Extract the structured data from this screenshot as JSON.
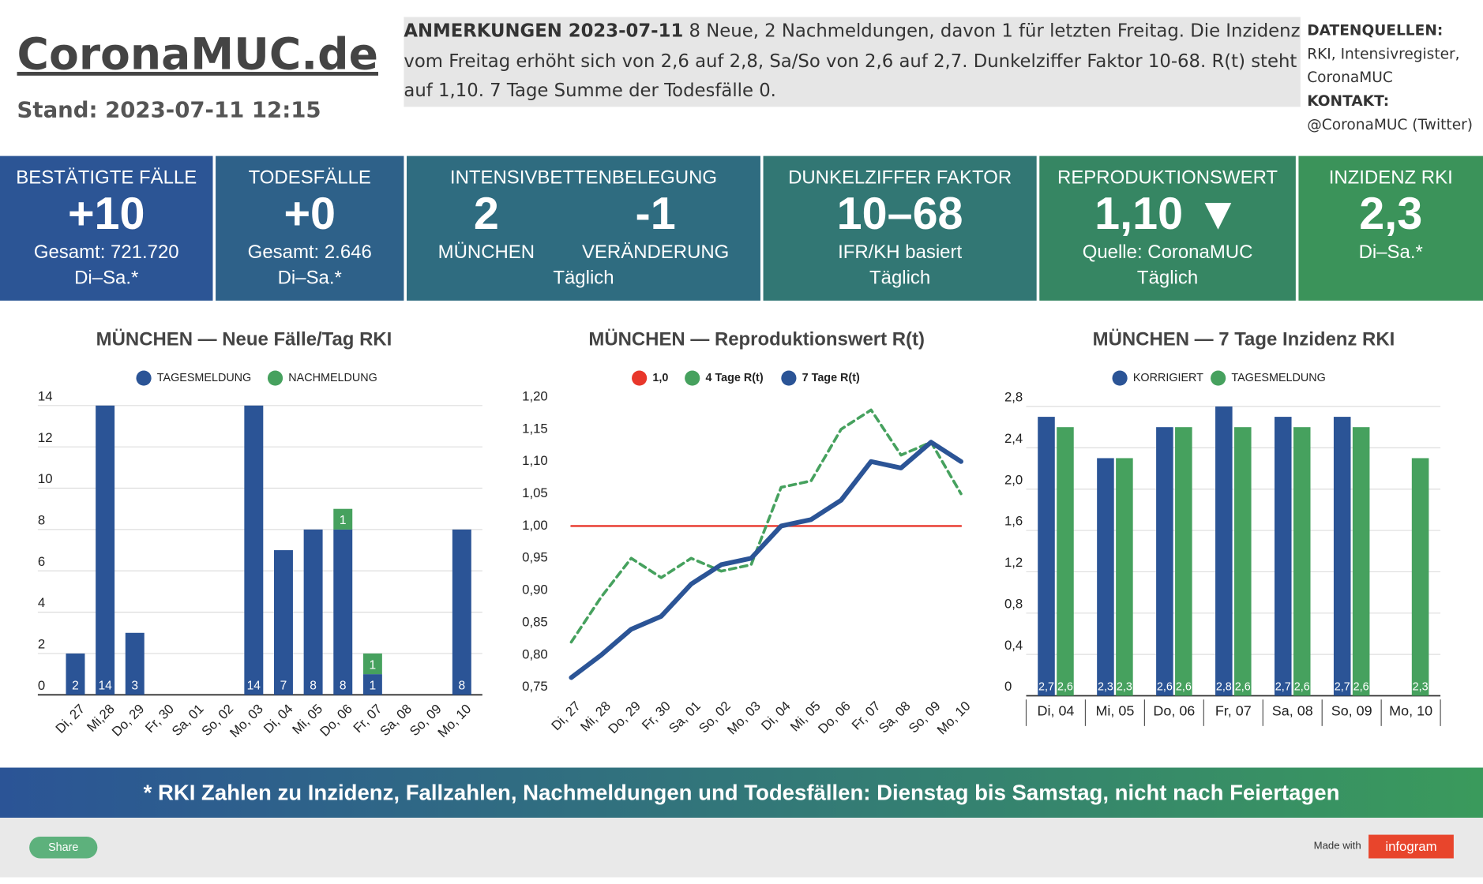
{
  "header": {
    "title": "CoronaMUC.de",
    "stand": "Stand: 2023-07-11 12:15"
  },
  "notes": {
    "heading": "ANMERKUNGEN 2023-07-11",
    "text": "8 Neue, 2 Nachmeldungen, davon 1 für letzten Freitag. Die Inzidenz vom Freitag erhöht sich von 2,6 auf 2,8, Sa/So von 2,6 auf 2,7. Dunkelziffer Faktor 10-68. R(t) steht auf 1,10. 7 Tage Summe der Todesfälle 0."
  },
  "sources": {
    "heading": "DATENQUELLEN:",
    "text": "RKI, Intensivregister, CoronaMUC",
    "contact_heading": "KONTAKT:",
    "contact": "@CoronaMUC (Twitter)"
  },
  "tiles": [
    {
      "title": "BESTÄTIGTE FÄLLE",
      "value": "+10",
      "lines": [
        "Gesamt: 721.720",
        "Di–Sa.*"
      ]
    },
    {
      "title": "TODESFÄLLE",
      "value": "+0",
      "lines": [
        "Gesamt: 2.646",
        "Di–Sa.*"
      ]
    },
    {
      "title": "INTENSIVBETTENBELEGUNG",
      "values": [
        "2",
        "-1"
      ],
      "labels": [
        "MÜNCHEN",
        "VERÄNDERUNG"
      ],
      "lines": [
        "Täglich"
      ]
    },
    {
      "title": "DUNKELZIFFER FAKTOR",
      "value": "10–68",
      "lines": [
        "IFR/KH basiert",
        "Täglich"
      ]
    },
    {
      "title": "REPRODUKTIONSWERT",
      "value": "1,10 ▼",
      "lines": [
        "Quelle: CoronaMUC",
        "Täglich"
      ]
    },
    {
      "title": "INZIDENZ RKI",
      "value": "2,3",
      "lines": [
        "Di–Sa.*"
      ]
    }
  ],
  "chart_data": [
    {
      "type": "bar",
      "stacked": true,
      "grid": true,
      "title": "MÜNCHEN — Neue Fälle/Tag RKI",
      "categories": [
        "Di, 27",
        "Mi,28",
        "Do, 29",
        "Fr, 30",
        "Sa, 01",
        "So, 02",
        "Mo, 03",
        "Di, 04",
        "Mi, 05",
        "Do, 06",
        "Fr, 07",
        "Sa, 08",
        "So, 09",
        "Mo, 10"
      ],
      "series": [
        {
          "name": "TAGESMELDUNG",
          "color": "#2b5496",
          "values": [
            2,
            14,
            3,
            null,
            null,
            null,
            14,
            7,
            8,
            8,
            1,
            null,
            null,
            8
          ]
        },
        {
          "name": "NACHMELDUNG",
          "color": "#46a15e",
          "values": [
            null,
            null,
            null,
            null,
            null,
            null,
            null,
            null,
            null,
            1,
            1,
            null,
            null,
            null
          ]
        }
      ],
      "ylim": [
        0,
        14
      ],
      "yticks": [
        0,
        2,
        4,
        6,
        8,
        10,
        12,
        14
      ]
    },
    {
      "type": "line",
      "grid": false,
      "title": "MÜNCHEN — Reproduktionswert R(t)",
      "categories": [
        "Di, 27",
        "Mi, 28",
        "Do, 29",
        "Fr, 30",
        "Sa, 01",
        "So, 02",
        "Mo, 03",
        "Di, 04",
        "Mi, 05",
        "Do, 06",
        "Fr, 07",
        "Sa, 08",
        "So, 09",
        "Mo, 10"
      ],
      "series": [
        {
          "name": "1,0",
          "color": "#e8372b",
          "values": [
            1,
            1,
            1,
            1,
            1,
            1,
            1,
            1,
            1,
            1,
            1,
            1,
            1,
            1
          ]
        },
        {
          "name": "4 Tage R(t)",
          "color": "#46a15e",
          "dashed": true,
          "values": [
            0.82,
            0.89,
            0.95,
            0.92,
            0.95,
            0.93,
            0.94,
            1.06,
            1.07,
            1.15,
            1.18,
            1.11,
            1.13,
            1.05
          ]
        },
        {
          "name": "7 Tage R(t)",
          "color": "#2b5496",
          "values": [
            0.765,
            0.8,
            0.84,
            0.86,
            0.91,
            0.94,
            0.95,
            1.0,
            1.01,
            1.04,
            1.1,
            1.09,
            1.13,
            1.1
          ]
        }
      ],
      "ylim": [
        0.75,
        1.2
      ],
      "yticks": [
        {
          "value": 0.75,
          "label": "0,75"
        },
        {
          "value": 0.8,
          "label": "0,80"
        },
        {
          "value": 0.85,
          "label": "0,85"
        },
        {
          "value": 0.9,
          "label": "0,90"
        },
        {
          "value": 0.95,
          "label": "0,95"
        },
        {
          "value": 1.0,
          "label": "1,00"
        },
        {
          "value": 1.05,
          "label": "1,05"
        },
        {
          "value": 1.1,
          "label": "1,10"
        },
        {
          "value": 1.15,
          "label": "1,15"
        },
        {
          "value": 1.2,
          "label": "1,20"
        }
      ]
    },
    {
      "type": "bar",
      "stacked": false,
      "grid": true,
      "title": "MÜNCHEN — 7 Tage Inzidenz RKI",
      "categories": [
        "Di, 04",
        "Mi, 05",
        "Do, 06",
        "Fr, 07",
        "Sa, 08",
        "So, 09",
        "Mo, 10"
      ],
      "series": [
        {
          "name": "KORRIGIERT",
          "color": "#2b5496",
          "values": [
            2.7,
            2.3,
            2.6,
            2.8,
            2.7,
            2.7,
            null
          ],
          "value_labels": [
            "2,7",
            "2,3",
            "2,6",
            "2,8",
            "2,7",
            "2,7",
            null
          ]
        },
        {
          "name": "TAGESMELDUNG",
          "color": "#46a15e",
          "values": [
            2.6,
            2.3,
            2.6,
            2.6,
            2.6,
            2.6,
            2.3
          ],
          "value_labels": [
            "2,6",
            "2,3",
            "2,6",
            "2,6",
            "2,6",
            "2,6",
            "2,3"
          ]
        }
      ],
      "ylim": [
        0,
        2.8
      ],
      "yticks": [
        0,
        {
          "value": 0.4,
          "label": "0,4"
        },
        {
          "value": 0.8,
          "label": "0,8"
        },
        {
          "value": 1.2,
          "label": "1,2"
        },
        {
          "value": 1.6,
          "label": "1,6"
        },
        {
          "value": 2.0,
          "label": "2,0"
        },
        {
          "value": 2.4,
          "label": "2,4"
        },
        {
          "value": 2.8,
          "label": "2,8"
        }
      ]
    }
  ],
  "footer": {
    "banner": "* RKI Zahlen zu Inzidenz, Fallzahlen, Nachmeldungen und Todesfällen: Dienstag bis Samstag, nicht nach Feiertagen",
    "share": "Share",
    "made_with": "Made with",
    "brand": "infogram"
  }
}
